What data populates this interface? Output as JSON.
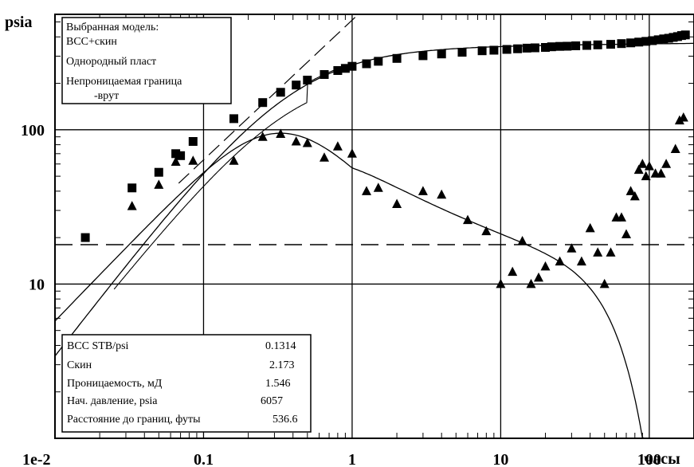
{
  "chart_data": {
    "type": "scatter",
    "scale": "log-log",
    "xlim": [
      0.01,
      200
    ],
    "ylim": [
      1,
      560
    ],
    "ylabel": "psia",
    "xlabel": "часы",
    "x_ticks": [
      {
        "value": 0.01,
        "label": "1e-2"
      },
      {
        "value": 0.1,
        "label": "0.1"
      },
      {
        "value": 1,
        "label": "1"
      },
      {
        "value": 10,
        "label": "10"
      },
      {
        "value": 100,
        "label": "100"
      }
    ],
    "y_ticks": [
      {
        "value": 10,
        "label": "10"
      },
      {
        "value": 100,
        "label": "100"
      }
    ],
    "reference_line_y": 18,
    "model_box": {
      "lines": [
        "Выбранная модель:",
        "ВСС+скин",
        "Однородный пласт",
        "Непроницаемая граница",
        "-врут"
      ]
    },
    "params_box": {
      "rows": [
        {
          "label": "ВСС STB/psi",
          "value": "0.1314"
        },
        {
          "label": "Скин",
          "value": "2.173"
        },
        {
          "label": "Проницаемость, мД",
          "value": "1.546"
        },
        {
          "label": "Нач. давление, psia",
          "value": "6057"
        },
        {
          "label": "Расстояние до границ, футы",
          "value": "536.6"
        }
      ]
    },
    "series": [
      {
        "marker": "square",
        "points": [
          [
            0.016,
            20
          ],
          [
            0.033,
            42
          ],
          [
            0.05,
            53
          ],
          [
            0.065,
            70
          ],
          [
            0.07,
            68
          ],
          [
            0.085,
            84
          ],
          [
            0.16,
            118
          ],
          [
            0.25,
            150
          ],
          [
            0.33,
            175
          ],
          [
            0.42,
            195
          ],
          [
            0.5,
            210
          ],
          [
            0.65,
            228
          ],
          [
            0.8,
            242
          ],
          [
            0.9,
            250
          ],
          [
            1.0,
            258
          ],
          [
            1.25,
            268
          ],
          [
            1.5,
            278
          ],
          [
            2.0,
            290
          ],
          [
            3.0,
            302
          ],
          [
            4.0,
            310
          ],
          [
            5.5,
            318
          ],
          [
            7.5,
            325
          ],
          [
            9.0,
            328
          ],
          [
            11.0,
            332
          ],
          [
            13.0,
            335
          ],
          [
            15.0,
            338
          ],
          [
            17.0,
            340
          ],
          [
            20.0,
            342
          ],
          [
            22.0,
            345
          ],
          [
            25.0,
            347
          ],
          [
            28.0,
            348
          ],
          [
            32.0,
            350
          ],
          [
            38.0,
            352
          ],
          [
            45.0,
            355
          ],
          [
            55.0,
            358
          ],
          [
            65.0,
            362
          ],
          [
            75.0,
            366
          ],
          [
            85.0,
            370
          ],
          [
            95.0,
            374
          ],
          [
            105.0,
            378
          ],
          [
            115.0,
            383
          ],
          [
            125.0,
            388
          ],
          [
            135.0,
            392
          ],
          [
            145.0,
            397
          ],
          [
            155.0,
            402
          ],
          [
            165.0,
            408
          ],
          [
            175.0,
            412
          ]
        ]
      },
      {
        "marker": "triangle",
        "points": [
          [
            0.033,
            32
          ],
          [
            0.05,
            44
          ],
          [
            0.065,
            62
          ],
          [
            0.085,
            63
          ],
          [
            0.16,
            63
          ],
          [
            0.25,
            90
          ],
          [
            0.33,
            94
          ],
          [
            0.42,
            84
          ],
          [
            0.5,
            82
          ],
          [
            0.65,
            66
          ],
          [
            0.8,
            78
          ],
          [
            1.0,
            70
          ],
          [
            1.5,
            42
          ],
          [
            1.25,
            40
          ],
          [
            2.0,
            33
          ],
          [
            3.0,
            40
          ],
          [
            4.0,
            38
          ],
          [
            6.0,
            26
          ],
          [
            8.0,
            22
          ],
          [
            10.0,
            10
          ],
          [
            12.0,
            12
          ],
          [
            14.0,
            19
          ],
          [
            16.0,
            10
          ],
          [
            18.0,
            11
          ],
          [
            20.0,
            13
          ],
          [
            25.0,
            14
          ],
          [
            30.0,
            17
          ],
          [
            35.0,
            14
          ],
          [
            40.0,
            23
          ],
          [
            45.0,
            16
          ],
          [
            50.0,
            10
          ],
          [
            55.0,
            16
          ],
          [
            60.0,
            27
          ],
          [
            65.0,
            27
          ],
          [
            70.0,
            21
          ],
          [
            75.0,
            40
          ],
          [
            80.0,
            37
          ],
          [
            85.0,
            55
          ],
          [
            90.0,
            60
          ],
          [
            95.0,
            50
          ],
          [
            100.0,
            58
          ],
          [
            110.0,
            52
          ],
          [
            120.0,
            52
          ],
          [
            130.0,
            60
          ],
          [
            150.0,
            75
          ],
          [
            160.0,
            115
          ],
          [
            170.0,
            120
          ]
        ]
      }
    ]
  }
}
